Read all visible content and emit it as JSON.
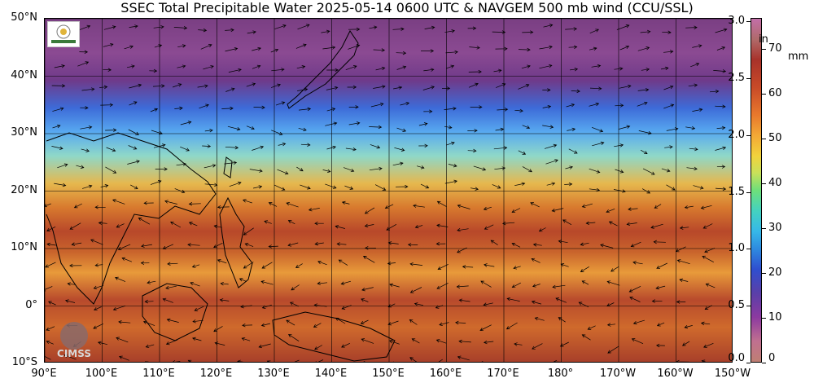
{
  "title": "SSEC Total Precipitable Water  2025-05-14 0600 UTC & NAVGEM 500 mb wind (CCU/SSL)",
  "map": {
    "lat_labels": [
      "50°N",
      "40°N",
      "30°N",
      "20°N",
      "10°N",
      "0°",
      "10°S"
    ],
    "lon_labels": [
      "90°E",
      "100°E",
      "110°E",
      "120°E",
      "130°E",
      "140°E",
      "150°E",
      "160°E",
      "170°E",
      "180°",
      "170°W",
      "160°W",
      "150°W"
    ],
    "lat_range": [
      -10,
      50
    ],
    "lon_range": [
      90,
      210
    ],
    "gridlines": true
  },
  "colorbar": {
    "in_label": "in",
    "mm_label": "mm",
    "in_ticks": [
      "3.0",
      "2.5",
      "2.0",
      "1.5",
      "1.0",
      "0.5",
      "0.0"
    ],
    "in_values": [
      3.0,
      2.5,
      2.0,
      1.5,
      1.0,
      0.5,
      0.0
    ],
    "mm_ticks": [
      "70",
      "60",
      "50",
      "40",
      "30",
      "20",
      "10",
      "0"
    ],
    "mm_values": [
      70,
      60,
      50,
      40,
      30,
      20,
      10,
      0
    ],
    "mm_max": 77
  },
  "logos": {
    "cimss_text": "CIMSS",
    "ssec_text": "SSEC"
  }
}
